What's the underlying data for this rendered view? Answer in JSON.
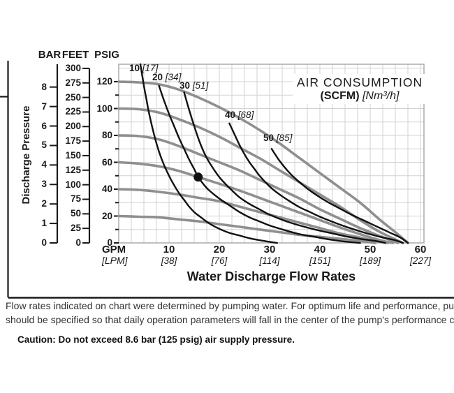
{
  "figure": {
    "scale_headers": {
      "bar": "BAR",
      "feet": "FEET",
      "psig": "PSIG"
    },
    "ylabel": "Discharge Pressure",
    "x_axis": {
      "primary_unit": "GPM",
      "secondary_unit": "[LPM]",
      "title": "Water Discharge Flow Rates"
    },
    "title": {
      "line1": "AIR CONSUMPTION",
      "line2_bold": "(SCFM)",
      "line2_italic": "[Nm³/h]"
    },
    "notes": {
      "line1": "Flow rates indicated on chart were determined by pumping water. For optimum life and performance, pumps",
      "line2": "should be specified so that daily operation parameters will fall in the center of the pump's performance curve.",
      "caution": "Caution: Do not exceed 8.6 bar (125 psig) air supply pressure."
    },
    "colors": {
      "curve_gray": "#8f8f8f",
      "curve_black": "#111111",
      "grid": "#d2d2d2",
      "plot_border": "#ababab",
      "axis_black": "#1a1a1a"
    }
  },
  "chart_data": {
    "type": "line",
    "title": "AIR CONSUMPTION (SCFM) [Nm³/h]",
    "xlabel": "Water Discharge Flow Rates",
    "ylabel": "Discharge Pressure",
    "x_unit": "GPM",
    "x_secondary_unit": "LPM",
    "xlim": [
      0,
      60.7
    ],
    "ylim_psig": [
      0,
      133
    ],
    "grid": {
      "x_step_gpm": 2.5,
      "y_step_psig": 10
    },
    "y_scales": {
      "psig": {
        "min": 0,
        "max": 120,
        "label_step": 20,
        "minor_step": 10
      },
      "feet": {
        "min": 0,
        "max": 300,
        "step": 25
      },
      "bar": {
        "min": 0,
        "max": 8,
        "step": 1
      }
    },
    "x_ticks": [
      {
        "gpm": 10,
        "lpm": 38
      },
      {
        "gpm": 20,
        "lpm": 76
      },
      {
        "gpm": 30,
        "lpm": 114
      },
      {
        "gpm": 40,
        "lpm": 151
      },
      {
        "gpm": 50,
        "lpm": 189
      },
      {
        "gpm": 60,
        "lpm": 227
      }
    ],
    "performance_curves": [
      {
        "name": "120 psig",
        "points": [
          [
            0,
            120
          ],
          [
            4,
            119.5
          ],
          [
            8,
            118
          ],
          [
            12,
            114
          ],
          [
            16,
            108
          ],
          [
            20,
            101
          ],
          [
            24,
            93
          ],
          [
            28,
            84
          ],
          [
            32,
            74
          ],
          [
            36,
            63
          ],
          [
            40,
            52
          ],
          [
            44,
            41
          ],
          [
            48,
            30
          ],
          [
            52,
            17
          ],
          [
            55,
            8
          ],
          [
            57.5,
            0
          ]
        ]
      },
      {
        "name": "100 psig",
        "points": [
          [
            0,
            100
          ],
          [
            4,
            99.5
          ],
          [
            8,
            97
          ],
          [
            12,
            92
          ],
          [
            16,
            86
          ],
          [
            20,
            79
          ],
          [
            24,
            71
          ],
          [
            28,
            63
          ],
          [
            32,
            54
          ],
          [
            36,
            45
          ],
          [
            40,
            36
          ],
          [
            44,
            27
          ],
          [
            48,
            17
          ],
          [
            52,
            8
          ],
          [
            56.5,
            0
          ]
        ]
      },
      {
        "name": "80 psig",
        "points": [
          [
            0,
            80
          ],
          [
            4,
            79.5
          ],
          [
            8,
            77
          ],
          [
            12,
            72
          ],
          [
            16,
            66
          ],
          [
            20,
            60
          ],
          [
            24,
            54
          ],
          [
            28,
            47
          ],
          [
            32,
            40
          ],
          [
            36,
            33
          ],
          [
            40,
            25
          ],
          [
            44,
            18
          ],
          [
            48,
            11
          ],
          [
            52,
            5
          ],
          [
            55.5,
            0
          ]
        ]
      },
      {
        "name": "60 psig",
        "points": [
          [
            0,
            60
          ],
          [
            4,
            59
          ],
          [
            8,
            57
          ],
          [
            12,
            53.5
          ],
          [
            15.8,
            49
          ],
          [
            20,
            44
          ],
          [
            24,
            39
          ],
          [
            28,
            33.5
          ],
          [
            32,
            28
          ],
          [
            36,
            22.5
          ],
          [
            40,
            17
          ],
          [
            44,
            11.5
          ],
          [
            48,
            6.5
          ],
          [
            52,
            2
          ],
          [
            54.5,
            0
          ]
        ]
      },
      {
        "name": "40 psig",
        "points": [
          [
            0,
            40
          ],
          [
            4,
            39.5
          ],
          [
            8,
            38
          ],
          [
            12,
            36
          ],
          [
            16,
            33.5
          ],
          [
            20,
            31
          ],
          [
            24,
            27
          ],
          [
            28,
            23
          ],
          [
            32,
            19
          ],
          [
            36,
            15
          ],
          [
            40,
            11
          ],
          [
            44,
            7
          ],
          [
            48,
            4
          ],
          [
            51,
            1.5
          ],
          [
            53.5,
            0
          ]
        ]
      },
      {
        "name": "20 psig",
        "points": [
          [
            0,
            20
          ],
          [
            4,
            19.5
          ],
          [
            8,
            19
          ],
          [
            12,
            17.5
          ],
          [
            16,
            16
          ],
          [
            20,
            14
          ],
          [
            24,
            12
          ],
          [
            28,
            10
          ],
          [
            32,
            8
          ],
          [
            36,
            6
          ],
          [
            40,
            4.5
          ],
          [
            44,
            3
          ],
          [
            48,
            1.5
          ],
          [
            51,
            0
          ]
        ]
      }
    ],
    "air_consumption_curves": [
      {
        "scfm": 10,
        "nm3h": 17,
        "label_anchor": [
          2.1,
          133.5
        ],
        "points": [
          [
            4.3,
            133
          ],
          [
            5,
            117
          ],
          [
            5.5,
            107
          ],
          [
            6,
            97
          ],
          [
            7,
            81
          ],
          [
            8,
            68
          ],
          [
            9,
            58
          ],
          [
            10,
            50
          ],
          [
            11,
            43
          ],
          [
            12,
            37
          ],
          [
            13,
            32
          ],
          [
            14,
            27
          ],
          [
            15,
            23
          ],
          [
            16,
            20
          ],
          [
            18,
            14.5
          ],
          [
            20,
            10.5
          ],
          [
            22,
            7.5
          ],
          [
            24,
            5.5
          ],
          [
            26,
            3.5
          ],
          [
            28,
            2
          ],
          [
            30,
            0.8
          ],
          [
            31.5,
            0
          ]
        ]
      },
      {
        "scfm": 20,
        "nm3h": 34,
        "label_anchor": [
          6.7,
          126.8
        ],
        "points": [
          [
            8,
            117
          ],
          [
            9,
            106
          ],
          [
            10,
            96
          ],
          [
            11,
            87
          ],
          [
            12,
            78
          ],
          [
            13,
            70
          ],
          [
            14,
            62
          ],
          [
            15,
            55
          ],
          [
            15.8,
            49
          ],
          [
            17,
            43
          ],
          [
            18,
            39
          ],
          [
            20,
            33
          ],
          [
            22,
            28
          ],
          [
            24,
            23
          ],
          [
            26,
            19
          ],
          [
            28,
            16
          ],
          [
            30,
            13
          ],
          [
            33,
            9.5
          ],
          [
            36,
            6.5
          ],
          [
            39,
            4.5
          ],
          [
            42,
            2.5
          ],
          [
            45,
            1
          ],
          [
            48,
            0
          ]
        ]
      },
      {
        "scfm": 30,
        "nm3h": 51,
        "label_anchor": [
          12.1,
          120.5
        ],
        "points": [
          [
            13,
            112
          ],
          [
            14,
            99
          ],
          [
            15,
            87
          ],
          [
            16,
            76
          ],
          [
            17,
            67
          ],
          [
            18,
            60
          ],
          [
            20,
            49
          ],
          [
            22,
            41
          ],
          [
            24,
            34
          ],
          [
            26,
            29
          ],
          [
            28,
            25
          ],
          [
            30,
            21
          ],
          [
            33,
            16.5
          ],
          [
            36,
            13
          ],
          [
            39,
            10
          ],
          [
            42,
            7.5
          ],
          [
            45,
            5
          ],
          [
            48,
            3
          ],
          [
            51,
            1.5
          ],
          [
            53,
            0
          ]
        ]
      },
      {
        "scfm": 40,
        "nm3h": 68,
        "label_anchor": [
          21.1,
          98.7
        ],
        "points": [
          [
            22,
            89
          ],
          [
            23,
            81
          ],
          [
            24,
            73
          ],
          [
            25,
            66
          ],
          [
            26,
            60
          ],
          [
            27,
            55
          ],
          [
            28,
            50
          ],
          [
            30,
            42
          ],
          [
            32,
            36
          ],
          [
            34,
            31
          ],
          [
            36,
            26.5
          ],
          [
            38,
            23
          ],
          [
            40,
            19.5
          ],
          [
            43,
            15
          ],
          [
            46,
            11
          ],
          [
            49,
            7.5
          ],
          [
            52,
            4.5
          ],
          [
            55,
            2
          ],
          [
            56.5,
            0
          ]
        ]
      },
      {
        "scfm": 50,
        "nm3h": 85,
        "label_anchor": [
          28.8,
          81.6
        ],
        "points": [
          [
            30.4,
            70
          ],
          [
            32,
            61
          ],
          [
            34,
            52
          ],
          [
            36,
            45
          ],
          [
            38,
            39
          ],
          [
            40,
            34
          ],
          [
            42,
            29.5
          ],
          [
            44,
            25.5
          ],
          [
            46,
            21.5
          ],
          [
            48,
            18
          ],
          [
            50,
            14.5
          ],
          [
            52,
            11
          ],
          [
            54,
            7.5
          ],
          [
            56,
            4
          ],
          [
            57.5,
            0
          ]
        ]
      }
    ],
    "operating_point": {
      "gpm": 15.8,
      "psig": 49
    }
  }
}
